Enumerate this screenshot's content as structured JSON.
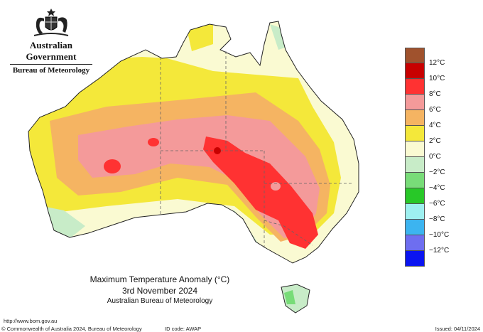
{
  "header": {
    "government": "Australian Government",
    "bureau": "Bureau of Meteorology",
    "crest_icon": "coat-of-arms-icon"
  },
  "map": {
    "title": "Maximum Temperature Anomaly (°C)",
    "date": "3rd November 2024",
    "source": "Australian Bureau of Meteorology",
    "peak_marker_icon": "anomaly-maximum-dot-icon"
  },
  "legend": {
    "items": [
      {
        "label": "12°C",
        "color": "#a0522d"
      },
      {
        "label": "10°C",
        "color": "#c80000"
      },
      {
        "label": "8°C",
        "color": "#ff3232"
      },
      {
        "label": "6°C",
        "color": "#f49a9a"
      },
      {
        "label": "4°C",
        "color": "#f5b462"
      },
      {
        "label": "2°C",
        "color": "#f4e83a"
      },
      {
        "label": "0°C",
        "color": "#fafad2"
      },
      {
        "label": "−2°C",
        "color": "#c8ecc8"
      },
      {
        "label": "−4°C",
        "color": "#78dc78"
      },
      {
        "label": "−6°C",
        "color": "#28c828"
      },
      {
        "label": "−8°C",
        "color": "#9ef0f0"
      },
      {
        "label": "−10°C",
        "color": "#3cb4f0"
      },
      {
        "label": "−12°C",
        "color": "#6e6ef0"
      },
      {
        "label": "",
        "color": "#0a14f0"
      }
    ]
  },
  "footer": {
    "url": "http://www.bom.gov.au",
    "copyright": "© Commonwealth of Australia 2024, Bureau of Meteorology",
    "id_code": "ID code: AWAP",
    "issued": "Issued: 04/11/2024"
  }
}
